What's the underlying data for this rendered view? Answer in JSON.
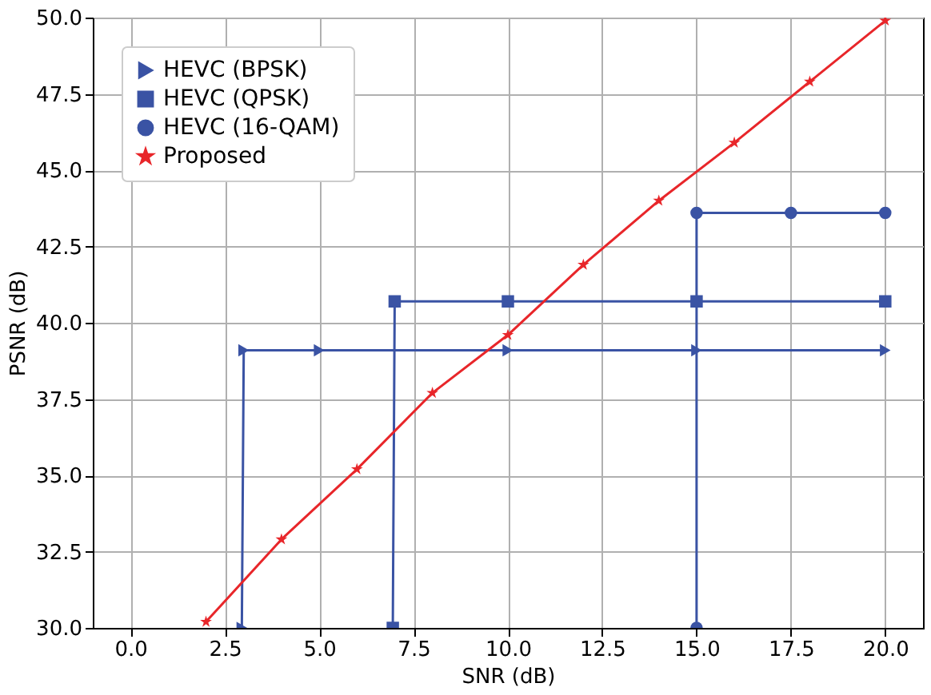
{
  "chart_data": {
    "type": "line",
    "xlabel": "SNR (dB)",
    "ylabel": "PSNR (dB)",
    "xlim": [
      -1,
      21
    ],
    "ylim": [
      30,
      50
    ],
    "xticks": [
      {
        "value": 0,
        "label": "0.0"
      },
      {
        "value": 2.5,
        "label": "2.5"
      },
      {
        "value": 5,
        "label": "5.0"
      },
      {
        "value": 7.5,
        "label": "7.5"
      },
      {
        "value": 10,
        "label": "10.0"
      },
      {
        "value": 12.5,
        "label": "12.5"
      },
      {
        "value": 15,
        "label": "15.0"
      },
      {
        "value": 17.5,
        "label": "17.5"
      },
      {
        "value": 20,
        "label": "20.0"
      }
    ],
    "yticks": [
      {
        "value": 30,
        "label": "30.0"
      },
      {
        "value": 32.5,
        "label": "32.5"
      },
      {
        "value": 35,
        "label": "35.0"
      },
      {
        "value": 37.5,
        "label": "37.5"
      },
      {
        "value": 40,
        "label": "40.0"
      },
      {
        "value": 42.5,
        "label": "42.5"
      },
      {
        "value": 45,
        "label": "45.0"
      },
      {
        "value": 47.5,
        "label": "47.5"
      },
      {
        "value": 50,
        "label": "50.0"
      }
    ],
    "grid": true,
    "legend": "top left",
    "line_style": "solid",
    "series": [
      {
        "name": "HEVC (BPSK)",
        "color": "#3a53a4",
        "marker": "triangle",
        "x": [
          2.95,
          3,
          5,
          10,
          15,
          20
        ],
        "values": [
          30,
          39.1,
          39.1,
          39.1,
          39.1,
          39.1
        ]
      },
      {
        "name": "HEVC (QPSK)",
        "color": "#3a53a4",
        "marker": "square",
        "x": [
          6.95,
          7,
          10,
          15,
          20
        ],
        "values": [
          30,
          40.7,
          40.7,
          40.7,
          40.7
        ]
      },
      {
        "name": "HEVC (16-QAM)",
        "color": "#3a53a4",
        "marker": "circle",
        "x": [
          15,
          15,
          17.5,
          20
        ],
        "values": [
          30,
          43.6,
          43.6,
          43.6
        ]
      },
      {
        "name": "Proposed",
        "color": "#e8262a",
        "marker": "star",
        "x": [
          2,
          4,
          6,
          8,
          10,
          12,
          14,
          16,
          18,
          20
        ],
        "values": [
          30.2,
          32.9,
          35.2,
          37.7,
          39.6,
          41.9,
          44.0,
          45.9,
          47.9,
          49.9
        ]
      }
    ]
  }
}
